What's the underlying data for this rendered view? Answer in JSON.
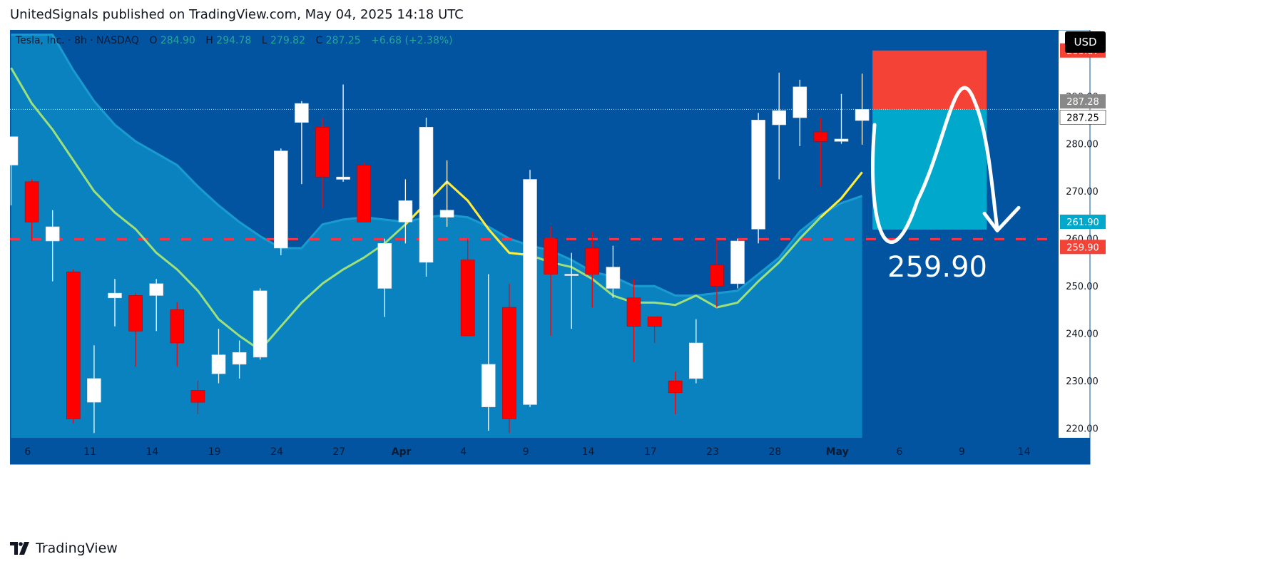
{
  "header": {
    "publish_text": "UnitedSignals published on TradingView.com, May 04, 2025 14:18 UTC"
  },
  "legend": {
    "symbol": "Tesla, Inc. · 8h · NASDAQ",
    "open_label": "O",
    "open": "284.90",
    "high_label": "H",
    "high": "294.78",
    "low_label": "L",
    "low": "279.82",
    "close_label": "C",
    "close": "287.25",
    "change": "+6.68 (+2.38%)"
  },
  "currency": "USD",
  "footer": {
    "brand": "TradingView"
  },
  "colors": {
    "background": "#0254a0",
    "up_candle": "#ffffff",
    "down_candle": "#ff0000",
    "ma_line": "#9ee07a",
    "ma_highlight": "#ffeb3b",
    "band_fill": "#0b8bc4",
    "stop_zone": "#f44336",
    "target_zone": "#00a8cc",
    "level_line": "#ff3344",
    "legend_value": "#26a69a"
  },
  "chart_data": {
    "type": "candlestick",
    "title": "Tesla, Inc. · 8h · NASDAQ",
    "ylim": [
      218,
      304
    ],
    "y_ticks": [
      220,
      230,
      240,
      250,
      260,
      270,
      280,
      290
    ],
    "x_ticks": [
      {
        "label": "6",
        "index": 0.8
      },
      {
        "label": "11",
        "index": 3.8
      },
      {
        "label": "14",
        "index": 6.8
      },
      {
        "label": "19",
        "index": 9.8
      },
      {
        "label": "24",
        "index": 12.8
      },
      {
        "label": "27",
        "index": 15.8
      },
      {
        "label": "Apr",
        "index": 18.8
      },
      {
        "label": "4",
        "index": 21.8
      },
      {
        "label": "9",
        "index": 24.8
      },
      {
        "label": "14",
        "index": 27.8
      },
      {
        "label": "17",
        "index": 30.8
      },
      {
        "label": "23",
        "index": 33.8
      },
      {
        "label": "28",
        "index": 36.8
      },
      {
        "label": "May",
        "index": 39.8
      },
      {
        "label": "6",
        "index": 42.8
      },
      {
        "label": "9",
        "index": 45.8
      },
      {
        "label": "14",
        "index": 48.8
      }
    ],
    "candles": [
      {
        "o": 275.5,
        "h": 281.0,
        "l": 267.0,
        "c": 281.5
      },
      {
        "o": 272.0,
        "h": 272.5,
        "l": 259.5,
        "c": 263.5
      },
      {
        "o": 259.5,
        "h": 266.0,
        "l": 251.0,
        "c": 262.5
      },
      {
        "o": 253.0,
        "h": 253.5,
        "l": 221.0,
        "c": 222.0
      },
      {
        "o": 225.5,
        "h": 237.5,
        "l": 219.0,
        "c": 230.5
      },
      {
        "o": 247.5,
        "h": 251.5,
        "l": 241.5,
        "c": 248.5
      },
      {
        "o": 248.0,
        "h": 248.5,
        "l": 233.0,
        "c": 240.5
      },
      {
        "o": 248.0,
        "h": 251.5,
        "l": 240.5,
        "c": 250.5
      },
      {
        "o": 245.0,
        "h": 246.5,
        "l": 233.0,
        "c": 238.0
      },
      {
        "o": 228.0,
        "h": 230.0,
        "l": 223.0,
        "c": 225.5
      },
      {
        "o": 231.5,
        "h": 241.0,
        "l": 229.5,
        "c": 235.5
      },
      {
        "o": 233.5,
        "h": 238.5,
        "l": 230.5,
        "c": 236.0
      },
      {
        "o": 235.0,
        "h": 249.5,
        "l": 234.5,
        "c": 249.0
      },
      {
        "o": 258.0,
        "h": 279.0,
        "l": 256.5,
        "c": 278.5
      },
      {
        "o": 284.5,
        "h": 289.0,
        "l": 271.5,
        "c": 288.5
      },
      {
        "o": 283.5,
        "h": 285.5,
        "l": 266.5,
        "c": 273.0
      },
      {
        "o": 272.5,
        "h": 292.5,
        "l": 272.0,
        "c": 273.0
      },
      {
        "o": 275.5,
        "h": 276.0,
        "l": 263.5,
        "c": 263.5
      },
      {
        "o": 249.5,
        "h": 260.0,
        "l": 243.5,
        "c": 259.0
      },
      {
        "o": 263.5,
        "h": 272.5,
        "l": 259.0,
        "c": 268.0
      },
      {
        "o": 255.0,
        "h": 285.5,
        "l": 252.0,
        "c": 283.5
      },
      {
        "o": 264.5,
        "h": 276.5,
        "l": 262.5,
        "c": 266.0
      },
      {
        "o": 255.5,
        "h": 260.0,
        "l": 239.5,
        "c": 239.5
      },
      {
        "o": 224.5,
        "h": 252.5,
        "l": 219.5,
        "c": 233.5
      },
      {
        "o": 245.5,
        "h": 250.5,
        "l": 219.0,
        "c": 222.0
      },
      {
        "o": 225.0,
        "h": 274.5,
        "l": 224.5,
        "c": 272.5
      },
      {
        "o": 260.0,
        "h": 262.5,
        "l": 239.5,
        "c": 252.5
      },
      {
        "o": 252.5,
        "h": 257.0,
        "l": 241.0,
        "c": 252.5
      },
      {
        "o": 258.0,
        "h": 261.5,
        "l": 245.5,
        "c": 252.5
      },
      {
        "o": 249.5,
        "h": 258.5,
        "l": 247.5,
        "c": 254.0
      },
      {
        "o": 247.5,
        "h": 251.5,
        "l": 234.0,
        "c": 241.5
      },
      {
        "o": 243.5,
        "h": 243.5,
        "l": 238.0,
        "c": 241.5
      },
      {
        "o": 230.0,
        "h": 232.0,
        "l": 223.0,
        "c": 227.5
      },
      {
        "o": 230.5,
        "h": 243.0,
        "l": 229.5,
        "c": 238.0
      },
      {
        "o": 254.5,
        "h": 260.0,
        "l": 245.5,
        "c": 250.0
      },
      {
        "o": 250.5,
        "h": 260.0,
        "l": 249.5,
        "c": 259.5
      },
      {
        "o": 262.0,
        "h": 286.5,
        "l": 259.0,
        "c": 285.0
      },
      {
        "o": 284.0,
        "h": 295.0,
        "l": 272.5,
        "c": 287.0
      },
      {
        "o": 285.5,
        "h": 293.5,
        "l": 279.5,
        "c": 292.0
      },
      {
        "o": 282.5,
        "h": 285.5,
        "l": 271.0,
        "c": 280.5
      },
      {
        "o": 280.5,
        "h": 290.5,
        "l": 280.0,
        "c": 281.0
      },
      {
        "o": 284.9,
        "h": 294.78,
        "l": 279.82,
        "c": 287.25
      }
    ],
    "ma_line": [
      296.0,
      288.5,
      283.0,
      276.5,
      270.0,
      265.5,
      262.0,
      257.0,
      253.5,
      249.0,
      243.0,
      239.5,
      236.5,
      241.5,
      246.5,
      250.5,
      253.5,
      256.0,
      259.0,
      263.0,
      267.5,
      272.0,
      268.0,
      262.0,
      257.0,
      256.5,
      255.0,
      254.0,
      251.5,
      248.0,
      246.5,
      246.5,
      246.0,
      248.0,
      245.5,
      246.5,
      251.0,
      255.0,
      260.0,
      264.5,
      268.5,
      274.0
    ],
    "ma_highlight_range": [
      19.7,
      24.3
    ],
    "band_upper": [
      303.0,
      303.0,
      303.0,
      295.5,
      289.0,
      284.0,
      280.5,
      278.0,
      275.5,
      271.0,
      267.0,
      263.5,
      260.5,
      258.0,
      258.0,
      263.0,
      264.0,
      264.5,
      264.0,
      263.5,
      264.5,
      265.0,
      264.5,
      262.5,
      260.0,
      258.5,
      257.5,
      255.5,
      253.0,
      252.0,
      250.0,
      250.0,
      248.0,
      248.0,
      248.5,
      249.0,
      252.5,
      256.0,
      261.5,
      265.0,
      267.5,
      269.0
    ],
    "price_levels": {
      "current": 287.25,
      "previous": 287.28,
      "stop": 299.67,
      "tp_zone_bottom": 261.9,
      "target": 259.9
    },
    "target_annotation": "259.90"
  }
}
